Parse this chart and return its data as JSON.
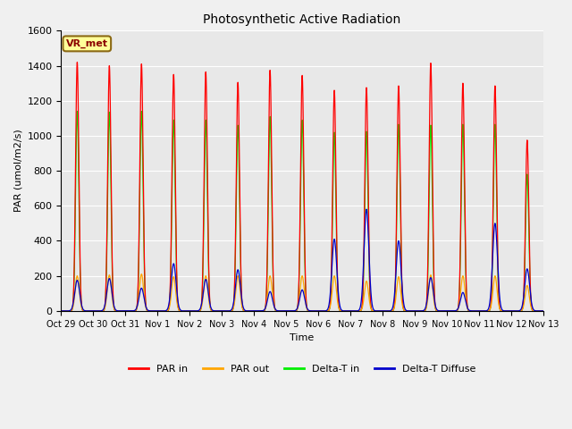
{
  "title": "Photosynthetic Active Radiation",
  "ylabel": "PAR (umol/m2/s)",
  "xlabel": "Time",
  "annotation": "VR_met",
  "ylim": [
    0,
    1600
  ],
  "plot_bg": "#e8e8e8",
  "fig_bg": "#f0f0f0",
  "colors": {
    "PAR_in": "#ff0000",
    "PAR_out": "#ffa500",
    "DT_in": "#00ee00",
    "DT_diff": "#0000cc"
  },
  "n_days": 15,
  "pts_per_day": 288,
  "day_peaks": {
    "PAR_in": [
      1420,
      1400,
      1410,
      1350,
      1365,
      1305,
      1375,
      1345,
      1260,
      1275,
      1285,
      1415,
      1300,
      1285,
      975
    ],
    "PAR_out": [
      200,
      205,
      210,
      195,
      200,
      200,
      200,
      200,
      200,
      170,
      195,
      205,
      200,
      200,
      145
    ],
    "DT_in": [
      1140,
      1135,
      1140,
      1090,
      1090,
      1060,
      1110,
      1090,
      1020,
      1025,
      1065,
      1060,
      1065,
      1065,
      780
    ],
    "DT_diff": [
      175,
      185,
      130,
      270,
      180,
      235,
      110,
      120,
      410,
      580,
      400,
      190,
      105,
      500,
      240
    ]
  },
  "tick_labels": [
    "Oct 29",
    "Oct 30",
    "Oct 31",
    "Nov 1",
    "Nov 2",
    "Nov 3",
    "Nov 4",
    "Nov 5",
    "Nov 6",
    "Nov 7",
    "Nov 8",
    "Nov 9",
    "Nov 10",
    "Nov 11",
    "Nov 12",
    "Nov 13"
  ],
  "figsize": [
    6.4,
    4.8
  ],
  "dpi": 100
}
